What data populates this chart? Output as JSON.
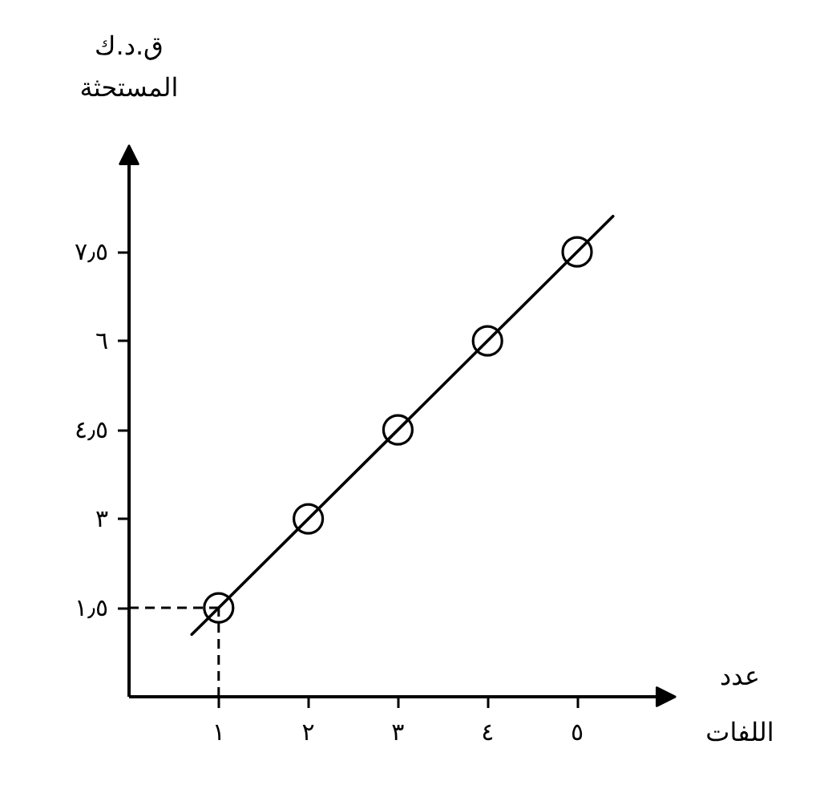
{
  "chart_data": {
    "type": "scatter",
    "xlabel": "عدد اللفات",
    "ylabel": "ق.د.ك المستحثة",
    "xlim": [
      0,
      6.1
    ],
    "ylim": [
      0,
      9.3
    ],
    "xticks": [
      {
        "value": 1,
        "label": "١"
      },
      {
        "value": 2,
        "label": "٢"
      },
      {
        "value": 3,
        "label": "٣"
      },
      {
        "value": 4,
        "label": "٤"
      },
      {
        "value": 5,
        "label": "٥"
      }
    ],
    "yticks": [
      {
        "value": 1.5,
        "label": "١٫٥"
      },
      {
        "value": 3,
        "label": "٣"
      },
      {
        "value": 4.5,
        "label": "٤٫٥"
      },
      {
        "value": 6,
        "label": "٦"
      },
      {
        "value": 7.5,
        "label": "٧٫٥"
      }
    ],
    "series": [
      {
        "type": "line",
        "color": "#000000",
        "x": [
          0.7,
          5.4
        ],
        "values": [
          1.05,
          8.1
        ],
        "marker": "none"
      },
      {
        "color": "#000000",
        "x": [
          1,
          2,
          3,
          4,
          5
        ],
        "values": [
          1.5,
          3,
          4.5,
          6,
          7.5
        ],
        "marker": "circle"
      }
    ],
    "ref_lines": [
      {
        "axis": "x",
        "value": 1,
        "line_style": "dashed",
        "color": "#000000"
      },
      {
        "axis": "y",
        "value": 1.5,
        "line_style": "dashed",
        "color": "#000000"
      }
    ],
    "grid": false
  }
}
